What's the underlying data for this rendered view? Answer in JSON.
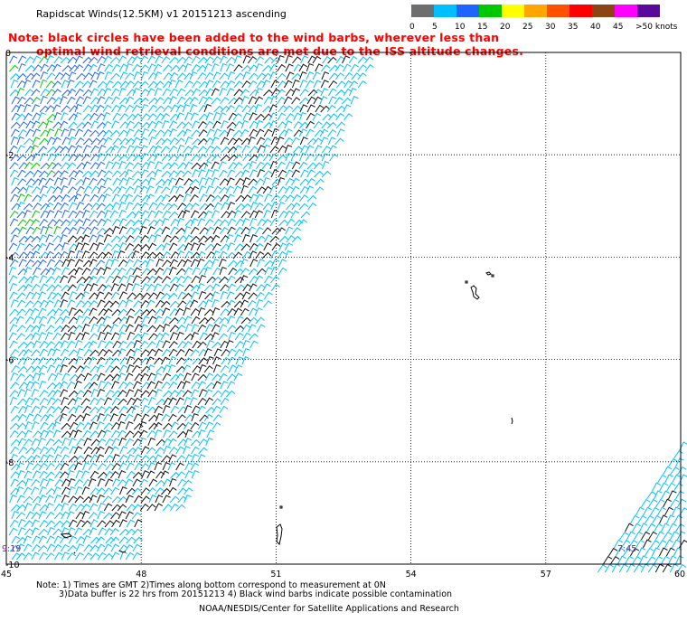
{
  "title": "Rapidscat Winds(12.5KM) v1 20151213 ascending",
  "note_line1": "Note: black circles have been added to the wind barbs, wherever less than",
  "note_line2": "optimal wind retrieval conditions are met due to the ISS altitude changes.",
  "legend": {
    "labels": [
      "0",
      "5",
      "10",
      "15",
      "20",
      "25",
      "30",
      "35",
      "40",
      "45",
      ">50 knots"
    ],
    "colors": [
      "#6e6e6e",
      "#00bfff",
      "#1e64ff",
      "#00c800",
      "#ffff00",
      "#ffa500",
      "#ff5000",
      "#ff0000",
      "#8b4513",
      "#ff00ff",
      "#5a0a9b"
    ]
  },
  "map": {
    "x_ticks": [
      "45",
      "48",
      "51",
      "54",
      "57",
      "60"
    ],
    "y_ticks": [
      "0",
      "-2",
      "-4",
      "-6",
      "-8",
      "-10"
    ],
    "time_left": "9:19",
    "time_right": "7:45"
  },
  "footer": {
    "line1": "Note: 1) Times are GMT 2)Times along bottom correspond to measurement at 0N",
    "line2": "3)Data buffer is 22 hrs from 20151213 4) Black wind barbs indicate possible contamination",
    "credit": "NOAA/NESDIS/Center for Satellite Applications and Research"
  }
}
